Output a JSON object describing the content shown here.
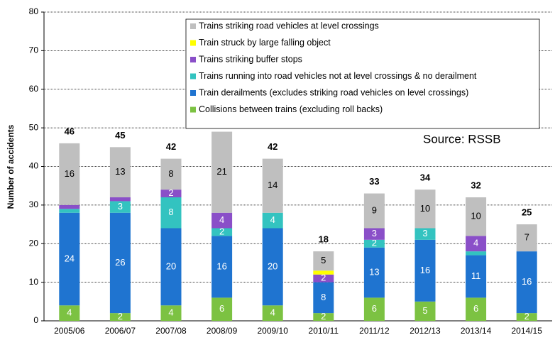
{
  "chart_data": {
    "type": "stacked_bar",
    "y_label": "Number of accidents",
    "annotation": "Source: RSSB",
    "categories": [
      "2005/06",
      "2006/07",
      "2007/08",
      "2008/09",
      "2009/10",
      "2010/11",
      "2011/12",
      "2012/13",
      "2013/14",
      "2014/15"
    ],
    "series": [
      {
        "name": "Collisions between trains (excluding roll backs)",
        "color": "#7cc242",
        "values": [
          4,
          2,
          4,
          6,
          4,
          2,
          6,
          5,
          6,
          2
        ]
      },
      {
        "name": "Train derailments (excludes striking road vehicles on level crossings)",
        "color": "#1f74d0",
        "values": [
          24,
          26,
          20,
          16,
          20,
          8,
          13,
          16,
          11,
          16
        ]
      },
      {
        "name": "Trains running into road vehicles not at level crossings & no derailment",
        "color": "#33c3c0",
        "values": [
          1,
          3,
          8,
          2,
          4,
          0,
          2,
          3,
          1,
          0
        ]
      },
      {
        "name": "Trains striking buffer stops",
        "color": "#8a4fc8",
        "values": [
          1,
          1,
          2,
          4,
          0,
          2,
          3,
          0,
          4,
          0
        ]
      },
      {
        "name": "Train struck by large falling object",
        "color": "#ffff00",
        "values": [
          0,
          0,
          0,
          0,
          0,
          1,
          0,
          0,
          0,
          0
        ]
      },
      {
        "name": "Trains striking road vehicles at level crossings",
        "color": "#bfbfbf",
        "values": [
          16,
          13,
          8,
          21,
          14,
          5,
          9,
          10,
          10,
          7
        ]
      }
    ],
    "totals": [
      46,
      45,
      42,
      49,
      42,
      18,
      33,
      34,
      32,
      25
    ],
    "ylim": [
      0,
      80
    ],
    "yticks": [
      0,
      10,
      20,
      30,
      40,
      50,
      60,
      70,
      80
    ],
    "grid": true
  }
}
